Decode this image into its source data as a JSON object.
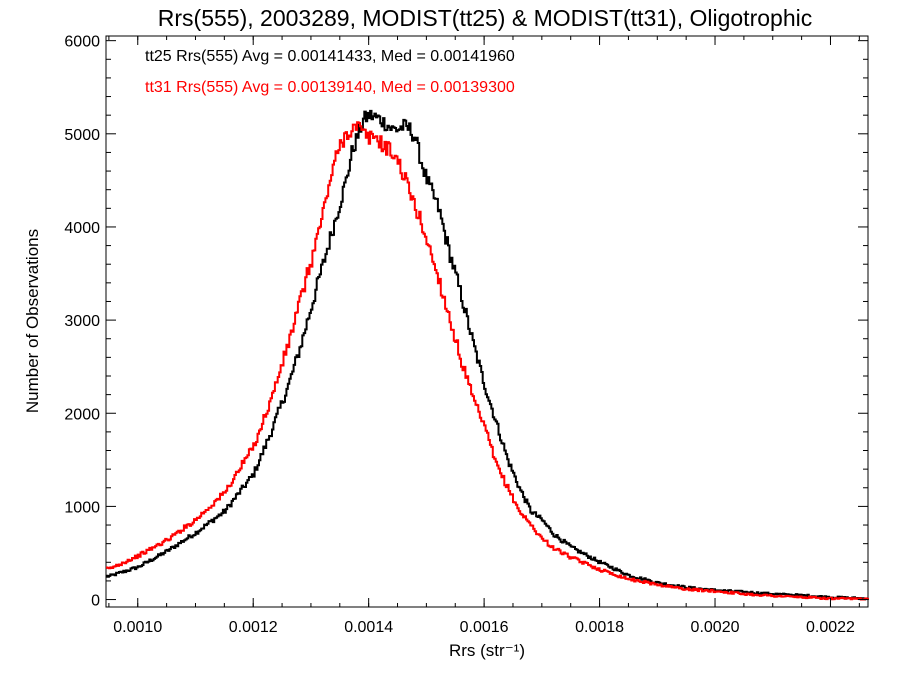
{
  "colors": {
    "tt25": "#000000",
    "tt31": "#ff0000",
    "axis": "#000000"
  },
  "chart_data": {
    "type": "line",
    "style": "histogram-step",
    "title": "Rrs(555), 2003289, MODIST(tt25) & MODIST(tt31), Oligotrophic",
    "xlabel": "Rrs (str⁻¹)",
    "ylabel": "Number of Observations",
    "xlim": [
      0.000945,
      0.002265
    ],
    "ylim": [
      -80,
      6050
    ],
    "xticks": [
      0.001,
      0.0012,
      0.0014,
      0.0016,
      0.0018,
      0.002,
      0.0022
    ],
    "xtick_labels": [
      "0.0010",
      "0.0012",
      "0.0014",
      "0.0016",
      "0.0018",
      "0.0020",
      "0.0022"
    ],
    "yticks": [
      0,
      1000,
      2000,
      3000,
      4000,
      5000,
      6000
    ],
    "ytick_labels": [
      "0",
      "1000",
      "2000",
      "3000",
      "4000",
      "5000",
      "6000"
    ],
    "grid": false,
    "legend_position": "top-left",
    "series": [
      {
        "key": "tt25",
        "name": "tt25 Rrs(555) Avg = 0.00141433, Med = 0.00141960",
        "x": [
          0.00095,
          0.001,
          0.00105,
          0.0011,
          0.00115,
          0.0012,
          0.00123,
          0.00126,
          0.00128,
          0.0013,
          0.00132,
          0.00134,
          0.00136,
          0.00137,
          0.00138,
          0.00139,
          0.0014,
          0.00141,
          0.00142,
          0.00143,
          0.00144,
          0.00145,
          0.00146,
          0.00147,
          0.00148,
          0.00149,
          0.0015,
          0.00152,
          0.00154,
          0.00156,
          0.00158,
          0.0016,
          0.00162,
          0.00164,
          0.00166,
          0.00168,
          0.0017,
          0.00172,
          0.00175,
          0.0018,
          0.00185,
          0.0019,
          0.00195,
          0.002,
          0.00205,
          0.0021,
          0.00215,
          0.0022,
          0.002265
        ],
        "y": [
          250,
          350,
          520,
          720,
          950,
          1350,
          1800,
          2300,
          2700,
          3150,
          3600,
          4050,
          4500,
          4800,
          4980,
          5150,
          5200,
          5180,
          5150,
          5100,
          5050,
          5050,
          5080,
          5050,
          4950,
          4700,
          4500,
          4200,
          3700,
          3250,
          2750,
          2300,
          1900,
          1500,
          1200,
          950,
          850,
          700,
          560,
          400,
          260,
          180,
          130,
          100,
          80,
          60,
          45,
          25,
          10
        ]
      },
      {
        "key": "tt31",
        "name": "tt31 Rrs(555) Avg = 0.00139140, Med = 0.00139300",
        "x": [
          0.00095,
          0.001,
          0.00105,
          0.0011,
          0.00115,
          0.0012,
          0.00123,
          0.00126,
          0.00128,
          0.0013,
          0.00132,
          0.00133,
          0.00134,
          0.00135,
          0.00136,
          0.00137,
          0.00138,
          0.00139,
          0.0014,
          0.00141,
          0.00142,
          0.00143,
          0.00144,
          0.00145,
          0.00146,
          0.00147,
          0.00148,
          0.00149,
          0.0015,
          0.00152,
          0.00154,
          0.00156,
          0.00158,
          0.0016,
          0.00162,
          0.00164,
          0.00166,
          0.00168,
          0.0017,
          0.00172,
          0.00175,
          0.0018,
          0.00185,
          0.0019,
          0.00195,
          0.002,
          0.00205,
          0.0021,
          0.00215,
          0.0022,
          0.002265
        ],
        "y": [
          330,
          470,
          640,
          860,
          1150,
          1650,
          2150,
          2750,
          3200,
          3650,
          4150,
          4450,
          4700,
          4880,
          5000,
          5050,
          5080,
          5000,
          4950,
          4980,
          4900,
          4850,
          4800,
          4700,
          4550,
          4380,
          4200,
          4050,
          3850,
          3450,
          3000,
          2550,
          2150,
          1850,
          1450,
          1200,
          950,
          800,
          650,
          550,
          450,
          320,
          220,
          160,
          110,
          90,
          60,
          40,
          25,
          10,
          5
        ]
      }
    ]
  }
}
